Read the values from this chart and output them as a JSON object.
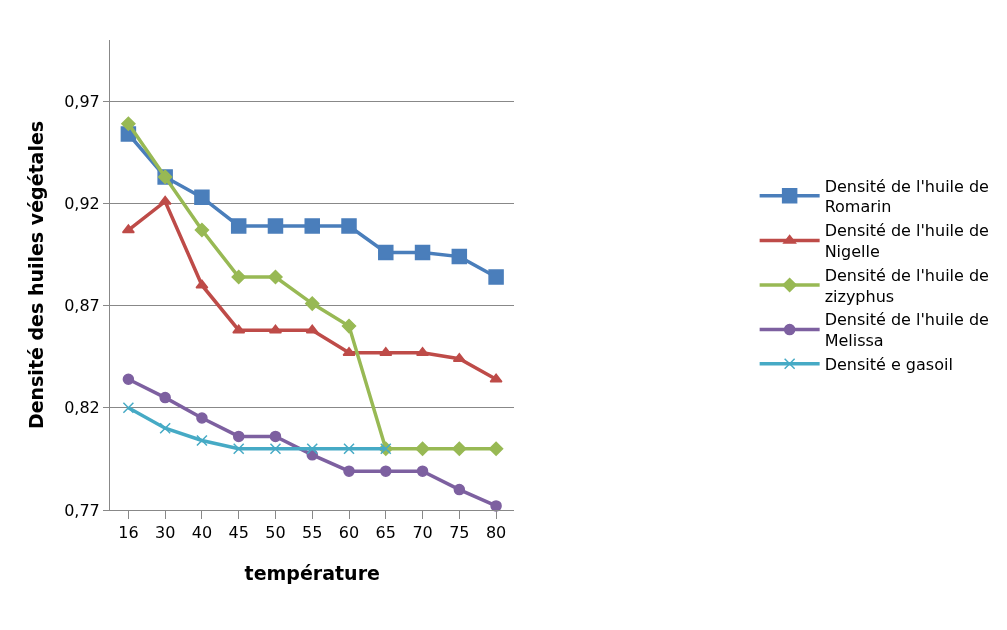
{
  "chart_data": {
    "type": "line",
    "xlabel": "température",
    "ylabel": "Densité des huiles végétales",
    "categories": [
      "16",
      "30",
      "40",
      "45",
      "50",
      "55",
      "60",
      "65",
      "70",
      "75",
      "80"
    ],
    "series": [
      {
        "name": "Densité de l'huile de Romarin",
        "color": "#4a7ebb",
        "marker": "square",
        "values": [
          0.954,
          0.933,
          0.923,
          0.909,
          0.909,
          0.909,
          0.909,
          0.896,
          0.896,
          0.894,
          0.884
        ]
      },
      {
        "name": "Densité de l'huile de Nigelle",
        "color": "#be4b48",
        "marker": "triangle",
        "values": [
          0.907,
          0.921,
          0.88,
          0.858,
          0.858,
          0.858,
          0.847,
          0.847,
          0.847,
          0.844,
          0.834
        ]
      },
      {
        "name": "Densité de l'huile de zizyphus",
        "color": "#98b954",
        "marker": "diamond",
        "values": [
          0.959,
          0.933,
          0.907,
          0.884,
          0.884,
          0.871,
          0.86,
          0.8,
          0.8,
          0.8,
          0.8
        ]
      },
      {
        "name": "Densité de l'huile de Melissa",
        "color": "#7d60a0",
        "marker": "circle",
        "values": [
          0.834,
          0.825,
          0.815,
          0.806,
          0.806,
          0.797,
          0.789,
          0.789,
          0.789,
          0.78,
          0.772
        ]
      },
      {
        "name": "Densité e gasoil",
        "color": "#46aac5",
        "marker": "cross",
        "values": [
          0.82,
          0.81,
          0.804,
          0.8,
          0.8,
          0.8,
          0.8,
          0.8,
          null,
          null,
          null
        ]
      }
    ],
    "ylim": [
      0.77,
      1.0
    ],
    "yticks": [
      {
        "value": 0.77,
        "label": "0,77"
      },
      {
        "value": 0.82,
        "label": "0,82"
      },
      {
        "value": 0.87,
        "label": "0,87"
      },
      {
        "value": 0.92,
        "label": "0,92"
      },
      {
        "value": 0.97,
        "label": "0,97"
      }
    ],
    "grid": "y",
    "legend": "right",
    "line_style": "solid"
  }
}
